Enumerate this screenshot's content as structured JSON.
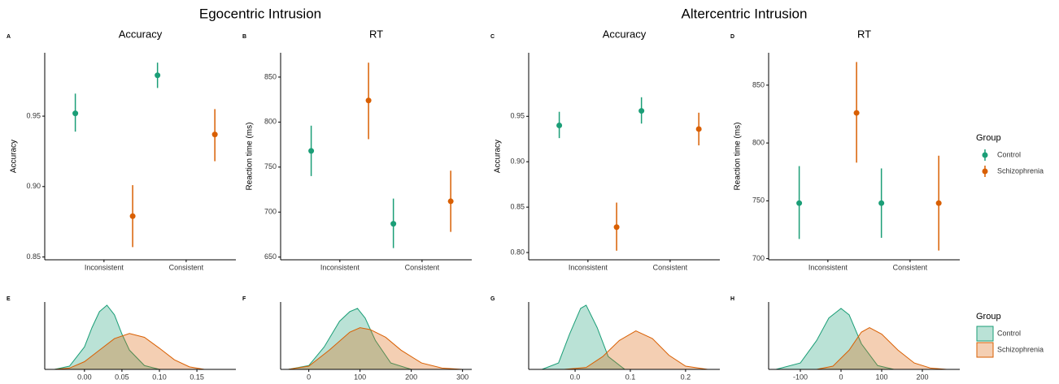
{
  "headings": [
    "Egocentric Intrusion",
    "Altercentric Intrusion"
  ],
  "chart_data": [
    {
      "type": "pointrange",
      "panel": "A",
      "title": "Accuracy",
      "ylabel": "Accuracy",
      "categories": [
        "Inconsistent",
        "Consistent"
      ],
      "series": [
        {
          "name": "Control",
          "color": "#1b9e77",
          "values": [
            0.952,
            0.979
          ],
          "lower": [
            0.939,
            0.97
          ],
          "upper": [
            0.966,
            0.988
          ]
        },
        {
          "name": "Schizophrenia",
          "color": "#d95f02",
          "values": [
            0.879,
            0.937
          ],
          "lower": [
            0.857,
            0.918
          ],
          "upper": [
            0.901,
            0.955
          ]
        }
      ],
      "ylim": [
        0.848,
        0.995
      ],
      "yticks": [
        0.85,
        {
          "value": 0.9,
          "label": "0.90"
        },
        0.95
      ],
      "legend_title": "Group",
      "legend": "right"
    },
    {
      "type": "pointrange",
      "panel": "B",
      "title": "RT",
      "ylabel": "Reaction time (ms)",
      "categories": [
        "Inconsistent",
        "Consistent"
      ],
      "series": [
        {
          "name": "Control",
          "color": "#1b9e77",
          "values": [
            768,
            687
          ],
          "lower": [
            740,
            660
          ],
          "upper": [
            796,
            715
          ]
        },
        {
          "name": "Schizophrenia",
          "color": "#d95f02",
          "values": [
            824,
            712
          ],
          "lower": [
            781,
            678
          ],
          "upper": [
            866,
            746
          ]
        }
      ],
      "ylim": [
        647,
        877
      ],
      "yticks": [
        650,
        700,
        750,
        800,
        850
      ]
    },
    {
      "type": "pointrange",
      "panel": "C",
      "title": "Accuracy",
      "ylabel": "Accuracy",
      "categories": [
        "Inconsistent",
        "Consistent"
      ],
      "series": [
        {
          "name": "Control",
          "color": "#1b9e77",
          "values": [
            0.94,
            0.956
          ],
          "lower": [
            0.926,
            0.942
          ],
          "upper": [
            0.955,
            0.971
          ]
        },
        {
          "name": "Schizophrenia",
          "color": "#d95f02",
          "values": [
            0.828,
            0.936
          ],
          "lower": [
            0.802,
            0.918
          ],
          "upper": [
            0.855,
            0.954
          ]
        }
      ],
      "ylim": [
        0.792,
        1.02
      ],
      "yticks": [
        {
          "value": 0.8,
          "label": "0.80"
        },
        0.85,
        {
          "value": 0.9,
          "label": "0.90"
        },
        0.95
      ]
    },
    {
      "type": "pointrange",
      "panel": "D",
      "title": "RT",
      "ylabel": "Reaction time (ms)",
      "categories": [
        "Inconsistent",
        "Consistent"
      ],
      "series": [
        {
          "name": "Control",
          "color": "#1b9e77",
          "values": [
            748,
            748
          ],
          "lower": [
            717,
            718
          ],
          "upper": [
            780,
            778
          ]
        },
        {
          "name": "Schizophrenia",
          "color": "#d95f02",
          "values": [
            826,
            748
          ],
          "lower": [
            783,
            707
          ],
          "upper": [
            870,
            789
          ]
        }
      ],
      "ylim": [
        699,
        878
      ],
      "yticks": [
        700,
        750,
        800,
        850
      ]
    },
    {
      "type": "density",
      "panel": "E",
      "series": [
        {
          "name": "Control",
          "color": "#1b9e77",
          "x": [
            -0.04,
            -0.02,
            0,
            0.01,
            0.02,
            0.03,
            0.04,
            0.05,
            0.06,
            0.08,
            0.1
          ],
          "values": [
            0,
            0.05,
            0.35,
            0.65,
            0.9,
            1,
            0.85,
            0.55,
            0.3,
            0.06,
            0
          ]
        },
        {
          "name": "Schizophrenia",
          "color": "#d95f02",
          "x": [
            -0.04,
            -0.02,
            0,
            0.02,
            0.04,
            0.06,
            0.08,
            0.1,
            0.12,
            0.14,
            0.16
          ],
          "values": [
            0,
            0.02,
            0.12,
            0.3,
            0.48,
            0.56,
            0.5,
            0.33,
            0.15,
            0.04,
            0
          ]
        }
      ],
      "xlim": [
        -0.053,
        0.202
      ],
      "xticks": [
        {
          "value": 0,
          "label": "0.00"
        },
        0.05,
        {
          "value": 0.1,
          "label": "0.10"
        },
        0.15
      ],
      "ylim": [
        0,
        1.05
      ],
      "legend_title": "Group",
      "legend": "right"
    },
    {
      "type": "density",
      "panel": "F",
      "series": [
        {
          "name": "Control",
          "color": "#1b9e77",
          "x": [
            -40,
            0,
            30,
            60,
            80,
            95,
            110,
            130,
            160,
            200
          ],
          "values": [
            0,
            0.06,
            0.35,
            0.75,
            0.9,
            0.95,
            0.8,
            0.45,
            0.1,
            0
          ]
        },
        {
          "name": "Schizophrenia",
          "color": "#d95f02",
          "x": [
            -40,
            0,
            40,
            80,
            100,
            120,
            150,
            180,
            220,
            260,
            300
          ],
          "values": [
            0,
            0.05,
            0.3,
            0.58,
            0.65,
            0.62,
            0.5,
            0.3,
            0.1,
            0.02,
            0
          ]
        }
      ],
      "xlim": [
        -55,
        318
      ],
      "xticks": [
        0,
        100,
        200,
        300
      ],
      "ylim": [
        0,
        1.05
      ]
    },
    {
      "type": "density",
      "panel": "G",
      "series": [
        {
          "name": "Control",
          "color": "#1b9e77",
          "x": [
            -0.06,
            -0.03,
            -0.01,
            0.01,
            0.02,
            0.04,
            0.06,
            0.09
          ],
          "values": [
            0,
            0.1,
            0.55,
            0.95,
            1,
            0.65,
            0.2,
            0
          ]
        },
        {
          "name": "Schizophrenia",
          "color": "#d95f02",
          "x": [
            -0.02,
            0.02,
            0.05,
            0.08,
            0.11,
            0.14,
            0.17,
            0.2,
            0.24
          ],
          "values": [
            0,
            0.03,
            0.2,
            0.45,
            0.6,
            0.48,
            0.22,
            0.05,
            0
          ]
        }
      ],
      "xlim": [
        -0.084,
        0.262
      ],
      "xticks": [
        {
          "value": 0,
          "label": "0.0"
        },
        0.1,
        0.2
      ],
      "ylim": [
        0,
        1.05
      ]
    },
    {
      "type": "density",
      "panel": "H",
      "series": [
        {
          "name": "Control",
          "color": "#1b9e77",
          "x": [
            -160,
            -100,
            -60,
            -30,
            0,
            20,
            50,
            90,
            130
          ],
          "values": [
            0,
            0.1,
            0.45,
            0.8,
            0.95,
            0.85,
            0.4,
            0.06,
            0
          ]
        },
        {
          "name": "Schizophrenia",
          "color": "#d95f02",
          "x": [
            -60,
            -20,
            20,
            50,
            70,
            100,
            140,
            180,
            220,
            260
          ],
          "values": [
            0,
            0.05,
            0.3,
            0.58,
            0.65,
            0.55,
            0.3,
            0.1,
            0.02,
            0
          ]
        }
      ],
      "xlim": [
        -178,
        292
      ],
      "xticks": [
        -100,
        0,
        100,
        200
      ],
      "ylim": [
        0,
        1.05
      ]
    }
  ]
}
